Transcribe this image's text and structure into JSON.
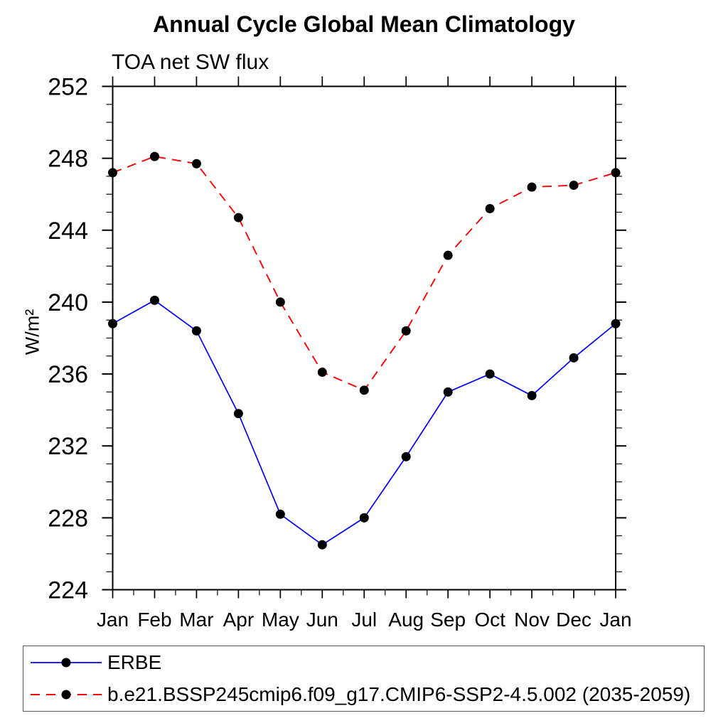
{
  "chart_data": {
    "type": "line",
    "title": "Annual Cycle Global Mean Climatology",
    "subtitle": "TOA net SW flux",
    "ylabel": "W/m²",
    "categories": [
      "Jan",
      "Feb",
      "Mar",
      "Apr",
      "May",
      "Jun",
      "Jul",
      "Aug",
      "Sep",
      "Oct",
      "Nov",
      "Dec",
      "Jan"
    ],
    "ylim": [
      224,
      252
    ],
    "yticks": [
      224,
      228,
      232,
      236,
      240,
      244,
      248,
      252
    ],
    "yticks_minor_step": 1,
    "x_minor_ticks": "half-month",
    "grid": false,
    "legend_position": "bottom-left-box",
    "frame_color": "#000000",
    "marker_color": "#000000",
    "series": [
      {
        "name": "ERBE",
        "color": "#0000ff",
        "line_style": "solid",
        "marker": "filled-circle",
        "values": [
          238.8,
          240.1,
          238.4,
          233.8,
          228.2,
          226.5,
          228.0,
          231.4,
          235.0,
          236.0,
          234.8,
          236.9,
          238.8
        ]
      },
      {
        "name": "b.e21.BSSP245cmip6.f09_g17.CMIP6-SSP2-4.5.002 (2035-2059)",
        "color": "#ff0000",
        "line_style": "dashed",
        "marker": "filled-circle",
        "values": [
          247.2,
          248.1,
          247.7,
          244.7,
          240.0,
          236.1,
          235.1,
          238.4,
          242.6,
          245.2,
          246.4,
          246.5,
          247.2
        ]
      }
    ]
  }
}
